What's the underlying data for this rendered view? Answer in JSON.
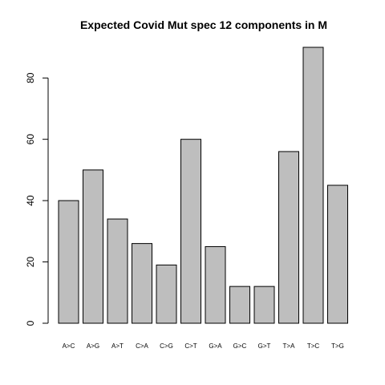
{
  "chart_data": {
    "type": "bar",
    "title": "Expected Covid Mut spec 12 components in M",
    "xlabel": "",
    "ylabel": "",
    "categories": [
      "A>C",
      "A>G",
      "A>T",
      "C>A",
      "C>G",
      "C>T",
      "G>A",
      "G>C",
      "G>T",
      "T>A",
      "T>C",
      "T>G"
    ],
    "values": [
      40,
      50,
      34,
      26,
      19,
      60,
      25,
      12,
      12,
      56,
      90,
      45
    ],
    "ylim": [
      0,
      90
    ],
    "yticks": [
      0,
      20,
      40,
      60,
      80
    ],
    "grid": false,
    "colors": {
      "bar_fill": "#bebebe",
      "bar_stroke": "#000000"
    }
  }
}
